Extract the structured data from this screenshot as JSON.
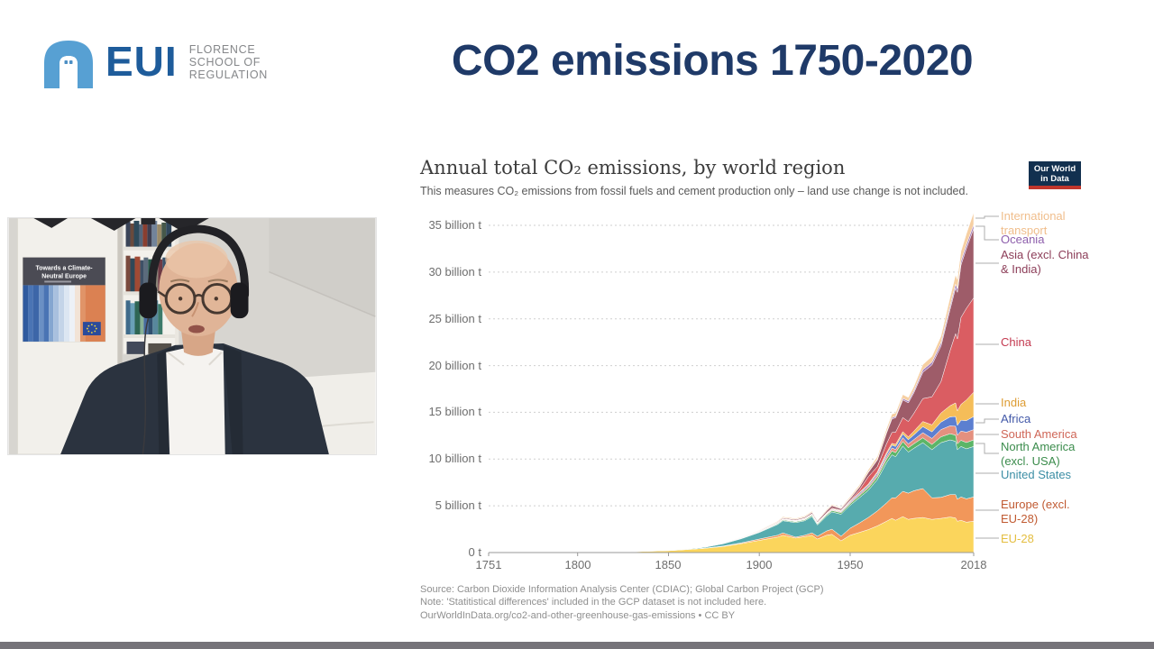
{
  "slide": {
    "title": "CO2 emissions 1750-2020",
    "title_color": "#1F3A68",
    "bottom_bar_color": "#757379"
  },
  "logo": {
    "acronym": "EUI",
    "org_lines": [
      "FLORENCE",
      "SCHOOL OF",
      "REGULATION"
    ],
    "arch_color": "#57A0D3",
    "acronym_color": "#1E5C9B",
    "org_text_color": "#85878A"
  },
  "webcam": {
    "poster_title_lines": [
      "Towards a Climate-",
      "Neutral Europe"
    ]
  },
  "chart": {
    "title": "Annual total CO₂ emissions, by world region",
    "subtitle": "This measures CO₂ emissions from fossil fuels and cement production only – land use change is not included.",
    "owid_logo_lines": [
      "Our World",
      "in Data"
    ],
    "owid_logo_bg": "#12304F",
    "owid_logo_accent": "#C0362C",
    "source_lines": [
      "Source: Carbon Dioxide Information Analysis Center (CDIAC); Global Carbon Project (GCP)",
      "Note: 'Statitistical differences' included in the GCP dataset is not included here.",
      "OurWorldInData.org/co2-and-other-greenhouse-gas-emissions • CC BY"
    ]
  },
  "chart_data": {
    "type": "area",
    "stacked": true,
    "grid": "dashed horizontal",
    "legend_position": "right",
    "x_range": [
      1751,
      2018
    ],
    "xticks": [
      1751,
      1800,
      1850,
      1900,
      1950,
      2018
    ],
    "y_top": 36.35,
    "yticks": [
      {
        "v": 0,
        "label": "0 t"
      },
      {
        "v": 5,
        "label": "5 billion t"
      },
      {
        "v": 10,
        "label": "10 billion t"
      },
      {
        "v": 15,
        "label": "15 billion t"
      },
      {
        "v": 20,
        "label": "20 billion t"
      },
      {
        "v": 25,
        "label": "25 billion t"
      },
      {
        "v": 30,
        "label": "30 billion t"
      },
      {
        "v": 35,
        "label": "35 billion t"
      }
    ],
    "unit": "billion tonnes CO2 per year",
    "years": [
      1751,
      1800,
      1825,
      1850,
      1860,
      1870,
      1880,
      1890,
      1900,
      1910,
      1913,
      1920,
      1925,
      1929,
      1932,
      1937,
      1940,
      1945,
      1950,
      1955,
      1960,
      1965,
      1970,
      1973,
      1975,
      1979,
      1982,
      1985,
      1990,
      1995,
      2000,
      2005,
      2008,
      2009,
      2011,
      2014,
      2018
    ],
    "series": [
      {
        "id": "eu-28",
        "label": "EU-28",
        "color": "#FBD55C",
        "label_color": "#E4BE41",
        "values": [
          0.01,
          0.03,
          0.06,
          0.2,
          0.32,
          0.45,
          0.65,
          0.95,
          1.3,
          1.65,
          1.85,
          1.55,
          1.7,
          1.85,
          1.45,
          1.85,
          1.95,
          1.25,
          1.85,
          2.15,
          2.45,
          2.85,
          3.35,
          3.65,
          3.45,
          3.85,
          3.55,
          3.65,
          3.75,
          3.55,
          3.65,
          3.8,
          3.7,
          3.35,
          3.45,
          3.25,
          3.35
        ]
      },
      {
        "id": "europe-excl-eu28",
        "label": "Europe (excl.\nEU-28)",
        "color": "#F2975A",
        "label_color": "#C05A31",
        "values": [
          0,
          0,
          0,
          0.01,
          0.01,
          0.02,
          0.04,
          0.08,
          0.15,
          0.2,
          0.25,
          0.1,
          0.15,
          0.25,
          0.3,
          0.45,
          0.55,
          0.5,
          0.75,
          1.0,
          1.3,
          1.6,
          1.95,
          2.2,
          2.4,
          2.7,
          2.8,
          2.95,
          3.1,
          2.3,
          2.25,
          2.4,
          2.5,
          2.35,
          2.5,
          2.5,
          2.6
        ]
      },
      {
        "id": "united-states",
        "label": "United States",
        "color": "#57ABAE",
        "label_color": "#3C8EA5",
        "values": [
          0,
          0,
          0.01,
          0.02,
          0.05,
          0.1,
          0.25,
          0.45,
          0.7,
          1.15,
          1.3,
          1.55,
          1.55,
          1.75,
          1.2,
          1.6,
          1.85,
          2.35,
          2.45,
          2.7,
          2.9,
          3.35,
          4.3,
          4.6,
          4.4,
          4.85,
          4.4,
          4.55,
          4.9,
          5.15,
          5.85,
          5.85,
          5.7,
          5.3,
          5.4,
          5.35,
          5.4
        ]
      },
      {
        "id": "north-america-excl-usa",
        "label": "North America\n(excl. USA)",
        "color": "#5CB567",
        "label_color": "#3B8C4C",
        "values": [
          0,
          0,
          0,
          0,
          0.01,
          0.01,
          0.02,
          0.03,
          0.05,
          0.08,
          0.09,
          0.1,
          0.1,
          0.12,
          0.1,
          0.12,
          0.14,
          0.16,
          0.18,
          0.22,
          0.25,
          0.3,
          0.38,
          0.42,
          0.43,
          0.48,
          0.46,
          0.48,
          0.52,
          0.56,
          0.63,
          0.66,
          0.66,
          0.62,
          0.65,
          0.67,
          0.7
        ]
      },
      {
        "id": "south-america",
        "label": "South America",
        "color": "#E4907F",
        "label_color": "#CF6657",
        "values": [
          0,
          0,
          0,
          0,
          0,
          0.01,
          0.01,
          0.02,
          0.02,
          0.03,
          0.04,
          0.04,
          0.05,
          0.06,
          0.05,
          0.06,
          0.07,
          0.09,
          0.11,
          0.14,
          0.17,
          0.21,
          0.27,
          0.32,
          0.34,
          0.4,
          0.42,
          0.44,
          0.55,
          0.65,
          0.77,
          0.85,
          0.95,
          0.93,
          1.0,
          1.1,
          1.1
        ]
      },
      {
        "id": "africa",
        "label": "Africa",
        "color": "#5C7FD0",
        "label_color": "#4258A8",
        "values": [
          0,
          0,
          0,
          0,
          0,
          0,
          0.01,
          0.01,
          0.02,
          0.02,
          0.03,
          0.03,
          0.04,
          0.04,
          0.04,
          0.05,
          0.06,
          0.07,
          0.1,
          0.12,
          0.14,
          0.19,
          0.25,
          0.3,
          0.33,
          0.4,
          0.44,
          0.5,
          0.65,
          0.7,
          0.8,
          0.95,
          1.05,
          1.05,
          1.15,
          1.25,
          1.4
        ]
      },
      {
        "id": "india",
        "label": "India",
        "color": "#F5BD59",
        "label_color": "#DD9C33",
        "values": [
          0,
          0,
          0,
          0,
          0,
          0.01,
          0.01,
          0.02,
          0.02,
          0.03,
          0.04,
          0.04,
          0.05,
          0.05,
          0.05,
          0.06,
          0.06,
          0.06,
          0.06,
          0.09,
          0.12,
          0.15,
          0.18,
          0.2,
          0.22,
          0.25,
          0.3,
          0.4,
          0.55,
          0.75,
          0.98,
          1.2,
          1.45,
          1.55,
          1.7,
          2.2,
          2.6
        ]
      },
      {
        "id": "china",
        "label": "China",
        "color": "#DA5D62",
        "label_color": "#C43A50",
        "values": [
          0,
          0,
          0,
          0,
          0,
          0,
          0,
          0.01,
          0.01,
          0.02,
          0.03,
          0.03,
          0.04,
          0.04,
          0.04,
          0.06,
          0.08,
          0.05,
          0.08,
          0.25,
          0.78,
          0.55,
          0.95,
          1.15,
          1.3,
          1.5,
          1.65,
          1.9,
          2.45,
          3.0,
          3.35,
          5.9,
          7.4,
          7.7,
          9.3,
          9.8,
          10.1
        ]
      },
      {
        "id": "asia-excl-china-india",
        "label": "Asia (excl. China\n& India)",
        "color": "#9E5C69",
        "label_color": "#8C3D58",
        "values": [
          0,
          0,
          0,
          0,
          0.01,
          0.01,
          0.02,
          0.03,
          0.05,
          0.07,
          0.08,
          0.1,
          0.11,
          0.13,
          0.13,
          0.2,
          0.25,
          0.15,
          0.2,
          0.3,
          0.45,
          0.7,
          1.15,
          1.45,
          1.55,
          1.9,
          2.0,
          2.2,
          2.8,
          3.4,
          3.8,
          4.4,
          4.9,
          5.0,
          5.6,
          6.4,
          7.4
        ]
      },
      {
        "id": "oceania",
        "label": "Oceania",
        "color": "#A57FBC",
        "label_color": "#8E5FAC",
        "values": [
          0,
          0,
          0,
          0,
          0,
          0,
          0.01,
          0.01,
          0.01,
          0.02,
          0.02,
          0.03,
          0.03,
          0.03,
          0.03,
          0.04,
          0.04,
          0.05,
          0.05,
          0.06,
          0.07,
          0.09,
          0.12,
          0.14,
          0.15,
          0.17,
          0.19,
          0.21,
          0.28,
          0.3,
          0.35,
          0.38,
          0.4,
          0.4,
          0.41,
          0.42,
          0.45
        ]
      },
      {
        "id": "international-transport",
        "label": "International\ntransport",
        "color": "#F6CFA2",
        "label_color": "#F0BE8C",
        "values": [
          0,
          0,
          0,
          0,
          0.01,
          0.01,
          0.02,
          0.03,
          0.05,
          0.08,
          0.1,
          0.08,
          0.09,
          0.1,
          0.08,
          0.1,
          0.1,
          0.08,
          0.15,
          0.18,
          0.22,
          0.28,
          0.35,
          0.38,
          0.37,
          0.4,
          0.38,
          0.45,
          0.55,
          0.62,
          0.7,
          0.9,
          1.0,
          0.95,
          1.05,
          1.15,
          1.3
        ]
      }
    ]
  }
}
